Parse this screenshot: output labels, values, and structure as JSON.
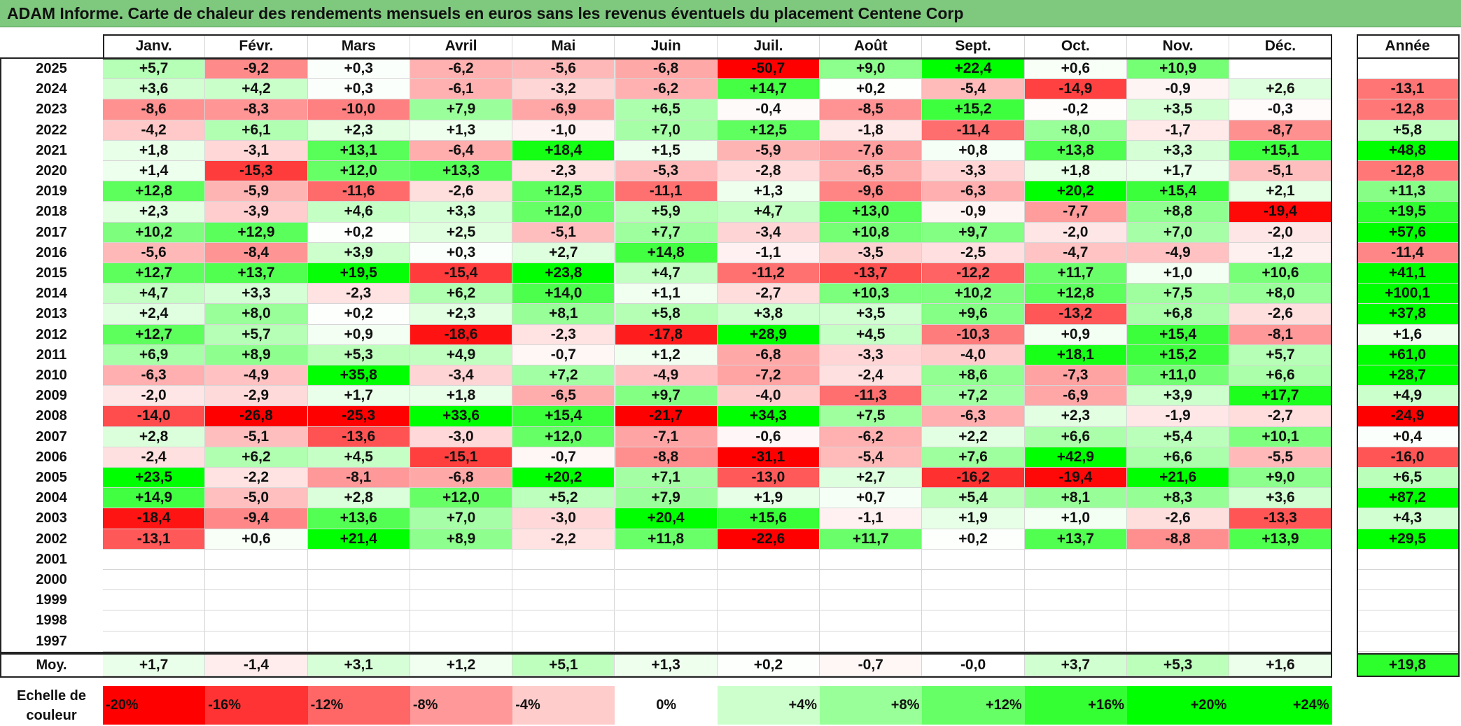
{
  "title": "ADAM Informe. Carte de chaleur des rendements mensuels en euros sans les revenus éventuels du placement Centene Corp",
  "colors": {
    "title_bar": "#7fc97f"
  },
  "chart_data": {
    "type": "heatmap",
    "title": "ADAM Informe. Carte de chaleur des rendements mensuels en euros sans les revenus éventuels du placement Centene Corp",
    "months": [
      "Janv.",
      "Févr.",
      "Mars",
      "Avril",
      "Mai",
      "Juin",
      "Juil.",
      "Août",
      "Sept.",
      "Oct.",
      "Nov.",
      "Déc."
    ],
    "year_header": "Année",
    "rows": [
      {
        "year": "2025",
        "values": [
          "+5,7",
          "-9,2",
          "+0,3",
          "-6,2",
          "-5,6",
          "-6,8",
          "-50,7",
          "+9,0",
          "+22,4",
          "+0,6",
          "+10,9",
          ""
        ],
        "annual": ""
      },
      {
        "year": "2024",
        "values": [
          "+3,6",
          "+4,2",
          "+0,3",
          "-6,1",
          "-3,2",
          "-6,2",
          "+14,7",
          "+0,2",
          "-5,4",
          "-14,9",
          "-0,9",
          "+2,6"
        ],
        "annual": "-13,1"
      },
      {
        "year": "2023",
        "values": [
          "-8,6",
          "-8,3",
          "-10,0",
          "+7,9",
          "-6,9",
          "+6,5",
          "-0,4",
          "-8,5",
          "+15,2",
          "-0,2",
          "+3,5",
          "-0,3"
        ],
        "annual": "-12,8"
      },
      {
        "year": "2022",
        "values": [
          "-4,2",
          "+6,1",
          "+2,3",
          "+1,3",
          "-1,0",
          "+7,0",
          "+12,5",
          "-1,8",
          "-11,4",
          "+8,0",
          "-1,7",
          "-8,7"
        ],
        "annual": "+5,8"
      },
      {
        "year": "2021",
        "values": [
          "+1,8",
          "-3,1",
          "+13,1",
          "-6,4",
          "+18,4",
          "+1,5",
          "-5,9",
          "-7,6",
          "+0,8",
          "+13,8",
          "+3,3",
          "+15,1"
        ],
        "annual": "+48,8"
      },
      {
        "year": "2020",
        "values": [
          "+1,4",
          "-15,3",
          "+12,0",
          "+13,3",
          "-2,3",
          "-5,3",
          "-2,8",
          "-6,5",
          "-3,3",
          "+1,8",
          "+1,7",
          "-5,1"
        ],
        "annual": "-12,8"
      },
      {
        "year": "2019",
        "values": [
          "+12,8",
          "-5,9",
          "-11,6",
          "-2,6",
          "+12,5",
          "-11,1",
          "+1,3",
          "-9,6",
          "-6,3",
          "+20,2",
          "+15,4",
          "+2,1"
        ],
        "annual": "+11,3"
      },
      {
        "year": "2018",
        "values": [
          "+2,3",
          "-3,9",
          "+4,6",
          "+3,3",
          "+12,0",
          "+5,9",
          "+4,7",
          "+13,0",
          "-0,9",
          "-7,7",
          "+8,8",
          "-19,4"
        ],
        "annual": "+19,5"
      },
      {
        "year": "2017",
        "values": [
          "+10,2",
          "+12,9",
          "+0,2",
          "+2,5",
          "-5,1",
          "+7,7",
          "-3,4",
          "+10,8",
          "+9,7",
          "-2,0",
          "+7,0",
          "-2,0"
        ],
        "annual": "+57,6"
      },
      {
        "year": "2016",
        "values": [
          "-5,6",
          "-8,4",
          "+3,9",
          "+0,3",
          "+2,7",
          "+14,8",
          "-1,1",
          "-3,5",
          "-2,5",
          "-4,7",
          "-4,9",
          "-1,2"
        ],
        "annual": "-11,4"
      },
      {
        "year": "2015",
        "values": [
          "+12,7",
          "+13,7",
          "+19,5",
          "-15,4",
          "+23,8",
          "+4,7",
          "-11,2",
          "-13,7",
          "-12,2",
          "+11,7",
          "+1,0",
          "+10,6"
        ],
        "annual": "+41,1"
      },
      {
        "year": "2014",
        "values": [
          "+4,7",
          "+3,3",
          "-2,3",
          "+6,2",
          "+14,0",
          "+1,1",
          "-2,7",
          "+10,3",
          "+10,2",
          "+12,8",
          "+7,5",
          "+8,0"
        ],
        "annual": "+100,1"
      },
      {
        "year": "2013",
        "values": [
          "+2,4",
          "+8,0",
          "+0,2",
          "+2,3",
          "+8,1",
          "+5,8",
          "+3,8",
          "+3,5",
          "+9,6",
          "-13,2",
          "+6,8",
          "-2,6"
        ],
        "annual": "+37,8"
      },
      {
        "year": "2012",
        "values": [
          "+12,7",
          "+5,7",
          "+0,9",
          "-18,6",
          "-2,3",
          "-17,8",
          "+28,9",
          "+4,5",
          "-10,3",
          "+0,9",
          "+15,4",
          "-8,1"
        ],
        "annual": "+1,6"
      },
      {
        "year": "2011",
        "values": [
          "+6,9",
          "+8,9",
          "+5,3",
          "+4,9",
          "-0,7",
          "+1,2",
          "-6,8",
          "-3,3",
          "-4,0",
          "+18,1",
          "+15,2",
          "+5,7"
        ],
        "annual": "+61,0"
      },
      {
        "year": "2010",
        "values": [
          "-6,3",
          "-4,9",
          "+35,8",
          "-3,4",
          "+7,2",
          "-4,9",
          "-7,2",
          "-2,4",
          "+8,6",
          "-7,3",
          "+11,0",
          "+6,6"
        ],
        "annual": "+28,7"
      },
      {
        "year": "2009",
        "values": [
          "-2,0",
          "-2,9",
          "+1,7",
          "+1,8",
          "-6,5",
          "+9,7",
          "-4,0",
          "-11,3",
          "+7,2",
          "-6,9",
          "+3,9",
          "+17,7"
        ],
        "annual": "+4,9"
      },
      {
        "year": "2008",
        "values": [
          "-14,0",
          "-26,8",
          "-25,3",
          "+33,6",
          "+15,4",
          "-21,7",
          "+34,3",
          "+7,5",
          "-6,3",
          "+2,3",
          "-1,9",
          "-2,7"
        ],
        "annual": "-24,9"
      },
      {
        "year": "2007",
        "values": [
          "+2,8",
          "-5,1",
          "-13,6",
          "-3,0",
          "+12,0",
          "-7,1",
          "-0,6",
          "-6,2",
          "+2,2",
          "+6,6",
          "+5,4",
          "+10,1"
        ],
        "annual": "+0,4"
      },
      {
        "year": "2006",
        "values": [
          "-2,4",
          "+6,2",
          "+4,5",
          "-15,1",
          "-0,7",
          "-8,8",
          "-31,1",
          "-5,4",
          "+7,6",
          "+42,9",
          "+6,6",
          "-5,5"
        ],
        "annual": "-16,0"
      },
      {
        "year": "2005",
        "values": [
          "+23,5",
          "-2,2",
          "-8,1",
          "-6,8",
          "+20,2",
          "+7,1",
          "-13,0",
          "+2,7",
          "-16,2",
          "-19,4",
          "+21,6",
          "+9,0"
        ],
        "annual": "+6,5"
      },
      {
        "year": "2004",
        "values": [
          "+14,9",
          "-5,0",
          "+2,8",
          "+12,0",
          "+5,2",
          "+7,9",
          "+1,9",
          "+0,7",
          "+5,4",
          "+8,1",
          "+8,3",
          "+3,6"
        ],
        "annual": "+87,2"
      },
      {
        "year": "2003",
        "values": [
          "-18,4",
          "-9,4",
          "+13,6",
          "+7,0",
          "-3,0",
          "+20,4",
          "+15,6",
          "-1,1",
          "+1,9",
          "+1,0",
          "-2,6",
          "-13,3"
        ],
        "annual": "+4,3"
      },
      {
        "year": "2002",
        "values": [
          "-13,1",
          "+0,6",
          "+21,4",
          "+8,9",
          "-2,2",
          "+11,8",
          "-22,6",
          "+11,7",
          "+0,2",
          "+13,7",
          "-8,8",
          "+13,9"
        ],
        "annual": "+29,5"
      },
      {
        "year": "2001",
        "values": [
          "",
          "",
          "",
          "",
          "",
          "",
          "",
          "",
          "",
          "",
          "",
          ""
        ],
        "annual": ""
      },
      {
        "year": "2000",
        "values": [
          "",
          "",
          "",
          "",
          "",
          "",
          "",
          "",
          "",
          "",
          "",
          ""
        ],
        "annual": ""
      },
      {
        "year": "1999",
        "values": [
          "",
          "",
          "",
          "",
          "",
          "",
          "",
          "",
          "",
          "",
          "",
          ""
        ],
        "annual": ""
      },
      {
        "year": "1998",
        "values": [
          "",
          "",
          "",
          "",
          "",
          "",
          "",
          "",
          "",
          "",
          "",
          ""
        ],
        "annual": ""
      },
      {
        "year": "1997",
        "values": [
          "",
          "",
          "",
          "",
          "",
          "",
          "",
          "",
          "",
          "",
          "",
          ""
        ],
        "annual": ""
      }
    ],
    "average": {
      "label": "Moy.",
      "values": [
        "+1,7",
        "-1,4",
        "+3,1",
        "+1,2",
        "+5,1",
        "+1,3",
        "+0,2",
        "-0,7",
        "-0,0",
        "+3,7",
        "+5,3",
        "+1,6"
      ],
      "annual": "+19,8"
    },
    "scale": {
      "label": "Echelle de couleur",
      "steps": [
        {
          "text": "-20%",
          "value": -20
        },
        {
          "text": "-16%",
          "value": -16
        },
        {
          "text": "-12%",
          "value": -12
        },
        {
          "text": "-8%",
          "value": -8
        },
        {
          "text": "-4%",
          "value": -4
        },
        {
          "text": "0%",
          "value": 0
        },
        {
          "text": "+4%",
          "value": 4
        },
        {
          "text": "+8%",
          "value": 8
        },
        {
          "text": "+12%",
          "value": 12
        },
        {
          "text": "+16%",
          "value": 16
        },
        {
          "text": "+20%",
          "value": 20
        },
        {
          "text": "+24%",
          "value": 24
        }
      ]
    }
  }
}
